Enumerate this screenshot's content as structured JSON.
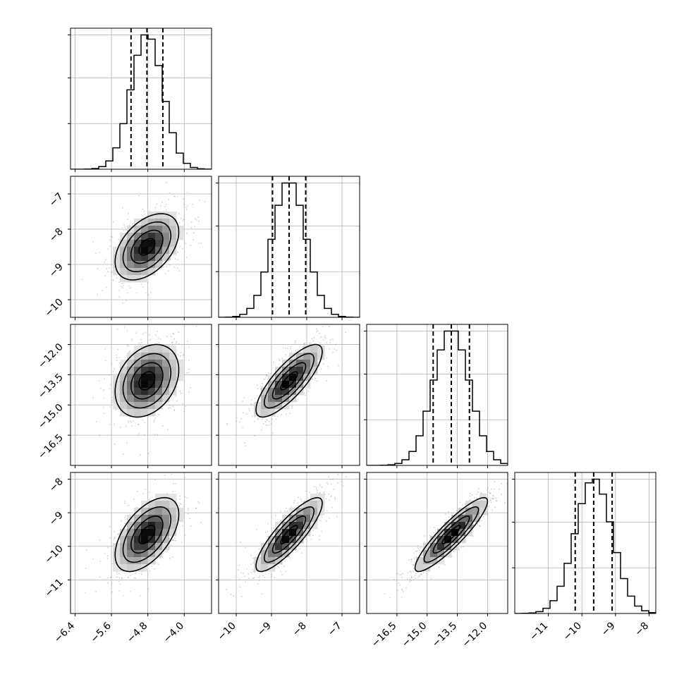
{
  "chart_data": {
    "type": "corner",
    "parameters": [
      {
        "mean": -4.82,
        "sd": 0.35,
        "quantiles": [
          -5.17,
          -4.82,
          -4.47
        ],
        "range": [
          -6.5,
          -3.4
        ],
        "ticks": [
          -6.4,
          -5.6,
          -4.8,
          -4.0
        ],
        "tick_labels": [
          "−6.4",
          "−5.6",
          "−4.8",
          "−4.0"
        ]
      },
      {
        "mean": -8.5,
        "sd": 0.47,
        "quantiles": [
          -8.97,
          -8.5,
          -8.03
        ],
        "range": [
          -10.5,
          -6.5
        ],
        "ticks": [
          -10,
          -9,
          -8,
          -7
        ],
        "tick_labels": [
          "−10",
          "−9",
          "−8",
          "−7"
        ]
      },
      {
        "mean": -13.8,
        "sd": 0.9,
        "quantiles": [
          -14.7,
          -13.8,
          -12.9
        ],
        "range": [
          -18.0,
          -11.0
        ],
        "ticks": [
          -16.5,
          -15.0,
          -13.5,
          -12.0
        ],
        "tick_labels": [
          "−16.5",
          "−15.0",
          "−13.5",
          "−12.0"
        ]
      },
      {
        "mean": -9.65,
        "sd": 0.55,
        "quantiles": [
          -10.2,
          -9.65,
          -9.1
        ],
        "range": [
          -12.0,
          -7.8
        ],
        "ticks": [
          -11,
          -10,
          -9,
          -8
        ],
        "tick_labels": [
          "−11",
          "−10",
          "−9",
          "−8"
        ]
      }
    ],
    "correlations": [
      [
        1.0,
        0.45,
        0.3,
        0.55
      ],
      [
        0.45,
        1.0,
        0.8,
        0.85
      ],
      [
        0.3,
        0.8,
        1.0,
        0.9
      ],
      [
        0.55,
        0.85,
        0.9,
        1.0
      ]
    ],
    "histogram_bins": 20,
    "contour_levels_sigma": [
      0.5,
      1.0,
      1.5,
      2.0
    ],
    "grid": true
  }
}
